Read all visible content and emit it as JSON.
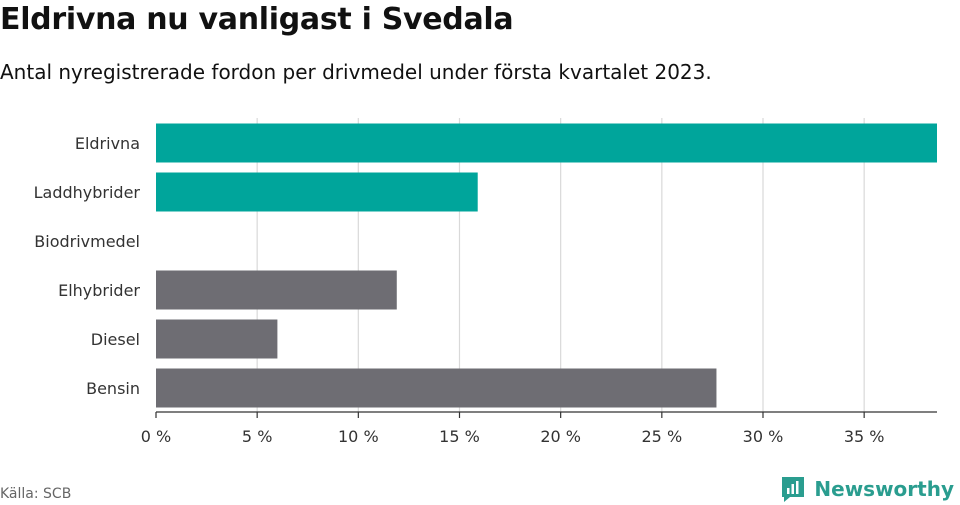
{
  "header": {
    "title": "Eldrivna nu vanligast i Svedala",
    "subtitle": "Antal nyregistrerade fordon per drivmedel under första kvartalet 2023."
  },
  "footer": {
    "source": "Källa: SCB",
    "brand": "Newsworthy"
  },
  "colors": {
    "highlight": "#00a59b",
    "other": "#6e6d73",
    "grid": "#d9d9d9",
    "axis": "#333333"
  },
  "chart_data": {
    "type": "bar",
    "orientation": "horizontal",
    "categories": [
      "Eldrivna",
      "Laddhybrider",
      "Biodrivmedel",
      "Elhybrider",
      "Diesel",
      "Bensin"
    ],
    "values": [
      38.6,
      15.9,
      0,
      11.9,
      6.0,
      27.7
    ],
    "highlight": [
      true,
      true,
      false,
      false,
      false,
      false
    ],
    "xlim": [
      0,
      38.6
    ],
    "xticks": [
      0,
      5,
      10,
      15,
      20,
      25,
      30,
      35
    ],
    "xtick_labels": [
      "0 %",
      "5 %",
      "10 %",
      "15 %",
      "20 %",
      "25 %",
      "30 %",
      "35 %"
    ],
    "grid": true
  }
}
